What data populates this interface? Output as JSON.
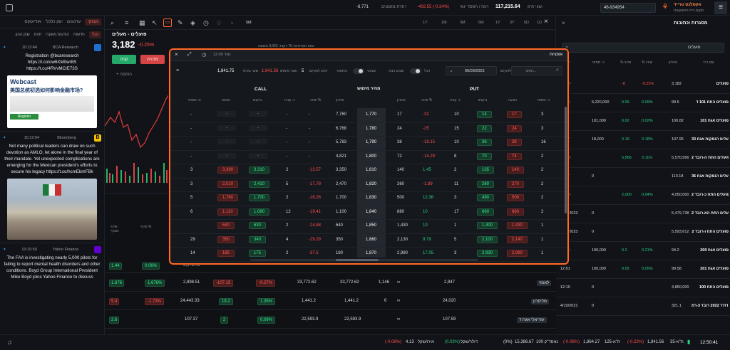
{
  "topbar": {
    "brand": "אקסלנס טרייד",
    "brand_sub": "מקום בית ההשקעות",
    "account": "46-934954",
    "account_label": "שווי תיק:",
    "portfolio_value": "117,215.64",
    "profit_label": "רווח / הפסד יומי",
    "profit_value": "-402.55 (-0.34%)",
    "cash_label": "יתרת מזומנים:",
    "cash_value": "-8,771"
  },
  "news": {
    "tabs": [
      "מבזקי",
      "עדכונים",
      "יומן כלכלי",
      "אודיוטקס"
    ],
    "subtabs": [
      "הכל",
      "חדשות",
      "הודעות מאקרו",
      "חזות",
      "שוק ההון"
    ],
    "items": [
      {
        "time": "10:13:44",
        "source": "BCA Research",
        "text": "Registration @bcaresearch https://t.co/ow6XM0wr8S https://t.co/4RVvMCIE73S"
      },
      {
        "time": "10:12:04",
        "source": "Bloomberg",
        "text": "Not many political leaders can draw on such devotion as AMLO, let alone in the final year of their mandate. Yet unexpected complications are emerging for the Mexican president's efforts to secure his legacy https://t.co/hcmEbmFBk"
      },
      {
        "time": "10:10:50",
        "source": "Yahoo Finance",
        "text": "The FAA is investigating nearly 5,000 pilots for failing to report mental health disorders and other conditions. Boyd Group International President Mike Boyd joins Yahoo Finance to discuss"
      }
    ],
    "webcast_title": "Webcast",
    "webcast_sub": "美国总统初选如何影响金融市场?",
    "register": "Register"
  },
  "chart": {
    "symbol": "פועלים - מעלים",
    "price": "3,182",
    "change": "-0.25%",
    "buy": "קניה",
    "sell": "מכירה",
    "add": "הוספה",
    "periods": [
      "1Y",
      "1M",
      "3M",
      "6M",
      "1Y",
      "3Y",
      "5D",
      "1D"
    ],
    "interval": "5M",
    "info": "טווח תנודתיות 70 דקות: 3,062 ממוצע"
  },
  "modal": {
    "title": "נגזר 12:00",
    "right_title": "אופציות",
    "search_placeholder": "חפש...",
    "date": "06/09/2023",
    "expiry_label": "לפקיעה",
    "toggle1": "הכל",
    "toggle2": "מתאמי",
    "toggle3": "שבוע הבא",
    "toggle4": "שבועי",
    "days_label": "ימים לפקיעה",
    "days": "5",
    "strike_label": "שער מימוש",
    "strike_value": "1,841.56",
    "spot_label": "שער בסיס",
    "spot_value": "1,841.75",
    "call": "CALL",
    "put": "PUT",
    "mid_header": "מחיר מימוש",
    "headers_call": [
      "ח. מסחר",
      "הצעה",
      "ביקוש",
      "כ. קניה",
      "שינוי %",
      "אחרון"
    ],
    "headers_put": [
      "אחרון",
      "שינוי %",
      "כ. קניה",
      "ביקוש",
      "הצעה",
      "כ. מסחר"
    ],
    "rows": [
      {
        "strike": "1,770",
        "c_vol": "-",
        "c_ask": "-",
        "c_bid": "-",
        "c_qty": "-",
        "c_chg": "-",
        "c_last": "7,760",
        "p_last": "17",
        "p_chg": "-32",
        "p_qty": "10",
        "p_bid": "14",
        "p_ask": "17",
        "p_vol": "3"
      },
      {
        "strike": "1,780",
        "c_vol": "-",
        "c_ask": "-",
        "c_bid": "-",
        "c_qty": "-",
        "c_chg": "-",
        "c_last": "6,768",
        "p_last": "24",
        "p_chg": "-25",
        "p_qty": "15",
        "p_bid": "22",
        "p_ask": "24",
        "p_vol": "3"
      },
      {
        "strike": "1,790",
        "c_vol": "-",
        "c_ask": "-",
        "c_bid": "-",
        "c_qty": "-",
        "c_chg": "-",
        "c_last": "5,783",
        "p_last": "38",
        "p_chg": "-19.15",
        "p_qty": "10",
        "p_bid": "36",
        "p_ask": "38",
        "p_vol": "16"
      },
      {
        "strike": "1,800",
        "c_vol": "-",
        "c_ask": "-",
        "c_bid": "-",
        "c_qty": "-",
        "c_chg": "-",
        "c_last": "4,821",
        "p_last": "72",
        "p_chg": "-14.29",
        "p_qty": "8",
        "p_bid": "70",
        "p_ask": "74",
        "p_vol": "2"
      },
      {
        "strike": "1,810",
        "c_vol": "3",
        "c_ask": "3,380",
        "c_bid": "3,310",
        "c_qty": "2",
        "c_chg": "-13.57",
        "c_last": "3,350",
        "p_last": "140",
        "p_chg": "1.45",
        "p_qty": "2",
        "p_bid": "135",
        "p_ask": "140",
        "p_vol": "2"
      },
      {
        "strike": "1,820",
        "c_vol": "3",
        "c_ask": "2,510",
        "c_bid": "2,410",
        "c_qty": "5",
        "c_chg": "-17.78",
        "c_last": "2,470",
        "p_last": "260",
        "p_chg": "-1.89",
        "p_qty": "11",
        "p_bid": "260",
        "p_ask": "270",
        "p_vol": "2"
      },
      {
        "strike": "1,830",
        "c_vol": "5",
        "c_ask": "1,760",
        "c_bid": "1,700",
        "c_qty": "2",
        "c_chg": "-16.26",
        "c_last": "1,700",
        "p_last": "500",
        "p_chg": "12.36",
        "p_qty": "3",
        "p_bid": "490",
        "p_ask": "500",
        "p_vol": "2"
      },
      {
        "strike": "1,840",
        "c_vol": "6",
        "c_ask": "1,110",
        "c_bid": "1,080",
        "c_qty": "12",
        "c_chg": "-19.41",
        "c_last": "1,100",
        "p_last": "880",
        "p_chg": "10",
        "p_qty": "17",
        "p_bid": "860",
        "p_ask": "880",
        "p_vol": "2"
      },
      {
        "strike": "1,850",
        "c_vol": "",
        "c_ask": "640",
        "c_bid": "630",
        "c_qty": "2",
        "c_chg": "-24.88",
        "c_last": "640",
        "p_last": "1,430",
        "p_chg": "10",
        "p_qty": "1",
        "p_bid": "1,400",
        "p_ask": "1,430",
        "p_vol": "1"
      },
      {
        "strike": "1,860",
        "c_vol": "29",
        "c_ask": "350",
        "c_bid": "340",
        "c_qty": "4",
        "c_chg": "-29.29",
        "c_last": "350",
        "p_last": "2,130",
        "p_chg": "9.79",
        "p_qty": "5",
        "p_bid": "2,100",
        "p_ask": "2,140",
        "p_vol": "1"
      },
      {
        "strike": "1,870",
        "c_vol": "14",
        "c_ask": "185",
        "c_bid": "175",
        "c_qty": "2",
        "c_chg": "-37.5",
        "c_last": "180",
        "p_last": "2,980",
        "p_chg": "17.05",
        "p_qty": "3",
        "p_bid": "2,930",
        "p_ask": "2,990",
        "p_vol": "1"
      }
    ]
  },
  "bottom_table": {
    "rows": [
      {
        "a": "1.44",
        "b": "0.06%",
        "c": "3,673.75",
        "d": "",
        "e": "-0.27%",
        "f": "2,320.64",
        "g": "2,320.64",
        "h": "64",
        "i": "∞",
        "j": "3,626",
        "k": "טבעון"
      },
      {
        "a": "1.676",
        "b": "1.676%",
        "c": "2,898.51",
        "d": "-107.15",
        "e": "-0.27%",
        "f": "33,772.62",
        "g": "33,772.62",
        "h": "1,146",
        "i": "∞",
        "j": "2,947",
        "k": "לאומי"
      },
      {
        "a": "5.4",
        "b": "-1.73%",
        "c": "24,443.33",
        "d": "19.2",
        "e": "1.35%",
        "f": "1,441.2",
        "g": "1,441.2",
        "h": "6",
        "i": "∞",
        "j": "24,020",
        "k": "מליסרון"
      },
      {
        "a": "2.6",
        "b": "",
        "c": "107.37",
        "d": "2",
        "e": "0.09%",
        "f": "22,593.9",
        "g": "22,593.9",
        "h": "",
        "i": "∞",
        "j": "107.59",
        "k": "עזריאלי אגח ד"
      }
    ]
  },
  "right": {
    "title": "מסגרות וכתובות",
    "search_value": "פועלים",
    "headers": [
      "שם נייר",
      "אחרון",
      "% שינוי",
      "% שינוי",
      "כ. מחזור",
      "שעה"
    ],
    "rows": [
      {
        "name": "פועלים",
        "last": "3,182",
        "chg": "-0.25%",
        "chg2": "-8",
        "time": "12:50",
        "vol": ""
      },
      {
        "name": "פועלים התח 101 ד",
        "last": "99.5",
        "chg": "0.09%",
        "chg2": "0.09",
        "time": "12:46",
        "vol": "5,220,000"
      },
      {
        "name": "פועלים אגח 101",
        "last": "100.82",
        "chg": "0.02%",
        "chg2": "0.02",
        "time": "11:52",
        "vol": "101,000"
      },
      {
        "name": "פועלים הנפקות אגח 33",
        "last": "107.95",
        "chg": "0.18%",
        "chg2": "0.19",
        "time": "12:37",
        "vol": "18,000"
      },
      {
        "name": "פועלים התח ה-רובד 2",
        "last": "5,570,566",
        "chg": "0.11%",
        "chg2": "5,566",
        "time": "10:30",
        "vol": ""
      },
      {
        "name": "פועלים הנפקות אגח 36",
        "last": "110.18",
        "chg": "",
        "chg2": "",
        "time": "12:07",
        "vol": "0"
      },
      {
        "name": "פועלים התח כ-רובד 2",
        "last": "4,050,000",
        "chg": "0.04%",
        "chg2": "2,000",
        "time": "10:20",
        "vol": ""
      },
      {
        "name": "פועלים התח הא-רובד 2",
        "last": "5,479,738",
        "chg": "",
        "chg2": "",
        "time": "3/16/2023",
        "vol": "0"
      },
      {
        "name": "פועלים התח ו-רובד 2",
        "last": "5,593,612",
        "chg": "",
        "chg2": "",
        "time": "3/16/2023",
        "vol": "0"
      },
      {
        "name": "פועלים אגח 200",
        "last": "94.2",
        "chg": "0.21%",
        "chg2": "0.2",
        "time": "12:44",
        "vol": "100,000"
      },
      {
        "name": "פועלים אגח 201",
        "last": "99.58",
        "chg": "0.05%",
        "chg2": "0.05",
        "time": "12:01",
        "vol": "100,000"
      },
      {
        "name": "פועלים התח 100",
        "last": "4,850,000",
        "chg": "",
        "chg2": "",
        "time": "12:10",
        "vol": "0"
      },
      {
        "name": "פועלים דולר 2022 רובד 3-רמ",
        "last": "321.1",
        "chg": "",
        "chg2": "",
        "time": "4/10/2021",
        "vol": "0"
      }
    ]
  },
  "status": {
    "clock": "12:50:41",
    "ta35": "ת\"א-35",
    "ta35_val": "1,841.56",
    "ta35_chg": "(-0.23%)",
    "ta125": "ת\"א-125",
    "ta125_val": "1,864.27",
    "ta125_chg": "(-0.08%)",
    "nasdaq": "נאסד\"ק 100",
    "nasdaq_val": "15,386.67",
    "nasdaq_chg": "(0%)",
    "dollar": "דולר/שקל",
    "dollar_val": "",
    "dollar_chg": "(0.03%)",
    "euro": "אירו/שקל",
    "euro_val": "4.13",
    "euro_chg": "(-0.08%)"
  },
  "colors": {
    "accent": "#ff6a2b",
    "up": "#27d17f",
    "down": "#ff4d4d",
    "bg": "#0f1115"
  }
}
